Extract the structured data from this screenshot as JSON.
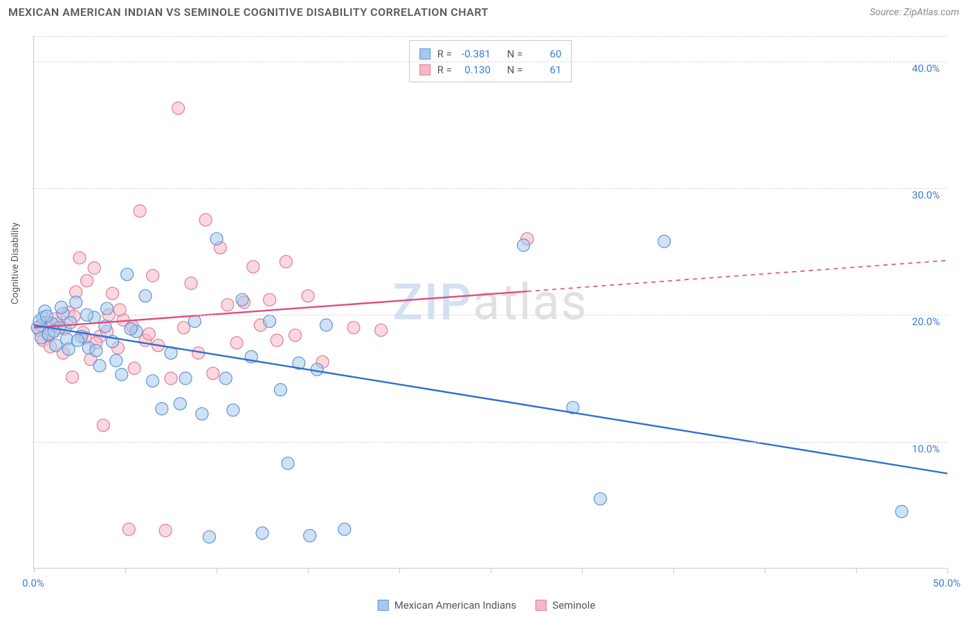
{
  "title": "MEXICAN AMERICAN INDIAN VS SEMINOLE COGNITIVE DISABILITY CORRELATION CHART",
  "source": "Source: ZipAtlas.com",
  "y_axis_label": "Cognitive Disability",
  "watermark_a": "ZIP",
  "watermark_b": "atlas",
  "chart": {
    "type": "scatter",
    "xlim": [
      0,
      50
    ],
    "ylim": [
      0,
      42
    ],
    "x_ticks": [
      0,
      5,
      10,
      15,
      20,
      25,
      30,
      35,
      40,
      45,
      50
    ],
    "x_tick_labels": {
      "0": "0.0%",
      "50": "50.0%"
    },
    "y_ticks": [
      10,
      20,
      30,
      40
    ],
    "y_tick_labels": {
      "10": "10.0%",
      "20": "20.0%",
      "30": "30.0%",
      "40": "40.0%"
    },
    "background_color": "#ffffff",
    "grid_color": "#d8d8d8",
    "axis_color": "#cccccc",
    "tick_label_color": "#3b7dd8",
    "point_radius": 9,
    "point_stroke_width": 1.2,
    "trend_line_width": 2.4
  },
  "series": {
    "blue": {
      "label": "Mexican American Indians",
      "fill": "#a8c8ec",
      "stroke": "#5a95d6",
      "fill_opacity": 0.55,
      "R_label": "R =",
      "R": "-0.381",
      "N_label": "N =",
      "N": "60",
      "trend": {
        "x1": 0,
        "y1": 19.2,
        "x2": 50,
        "y2": 7.5,
        "solid_until_x": 50,
        "color": "#2e6fd0"
      },
      "points": [
        [
          0.2,
          19.0
        ],
        [
          0.4,
          18.2
        ],
        [
          0.5,
          19.8
        ],
        [
          0.6,
          20.3
        ],
        [
          0.8,
          18.5
        ],
        [
          1.0,
          19.3
        ],
        [
          1.2,
          17.6
        ],
        [
          1.4,
          19.0
        ],
        [
          1.6,
          20.1
        ],
        [
          1.8,
          18.1
        ],
        [
          2.0,
          19.4
        ],
        [
          2.3,
          21.0
        ],
        [
          2.6,
          18.3
        ],
        [
          3.0,
          17.4
        ],
        [
          3.3,
          19.8
        ],
        [
          3.6,
          16.0
        ],
        [
          4.0,
          20.5
        ],
        [
          4.3,
          17.9
        ],
        [
          4.8,
          15.3
        ],
        [
          5.1,
          23.2
        ],
        [
          5.6,
          18.7
        ],
        [
          6.1,
          21.5
        ],
        [
          6.5,
          14.8
        ],
        [
          7.0,
          12.6
        ],
        [
          7.5,
          17.0
        ],
        [
          8.0,
          13.0
        ],
        [
          8.3,
          15.0
        ],
        [
          8.8,
          19.5
        ],
        [
          9.2,
          12.2
        ],
        [
          9.6,
          2.5
        ],
        [
          10.0,
          26.0
        ],
        [
          10.5,
          15.0
        ],
        [
          10.9,
          12.5
        ],
        [
          11.4,
          21.2
        ],
        [
          11.9,
          16.7
        ],
        [
          12.5,
          2.8
        ],
        [
          12.9,
          19.5
        ],
        [
          13.5,
          14.1
        ],
        [
          13.9,
          8.3
        ],
        [
          14.5,
          16.2
        ],
        [
          15.1,
          2.6
        ],
        [
          15.5,
          15.7
        ],
        [
          16.0,
          19.2
        ],
        [
          17.0,
          3.1
        ],
        [
          26.8,
          25.5
        ],
        [
          29.5,
          12.7
        ],
        [
          31.0,
          5.5
        ],
        [
          34.5,
          25.8
        ],
        [
          47.5,
          4.5
        ],
        [
          0.3,
          19.5
        ],
        [
          0.7,
          19.9
        ],
        [
          1.1,
          18.7
        ],
        [
          1.5,
          20.6
        ],
        [
          1.9,
          17.3
        ],
        [
          2.4,
          18.0
        ],
        [
          2.9,
          20.0
        ],
        [
          3.4,
          17.2
        ],
        [
          3.9,
          19.1
        ],
        [
          4.5,
          16.4
        ],
        [
          5.3,
          18.9
        ]
      ]
    },
    "pink": {
      "label": "Seminole",
      "fill": "#f5b8c4",
      "stroke": "#e37a94",
      "fill_opacity": 0.55,
      "R_label": "R =",
      "R": "0.130",
      "N_label": "N =",
      "N": "61",
      "trend": {
        "x1": 0,
        "y1": 19.0,
        "x2": 50,
        "y2": 24.3,
        "solid_until_x": 27,
        "color": "#e34b7a"
      },
      "points": [
        [
          0.3,
          18.8
        ],
        [
          0.5,
          18.0
        ],
        [
          0.7,
          19.5
        ],
        [
          0.9,
          17.5
        ],
        [
          1.1,
          18.8
        ],
        [
          1.3,
          19.3
        ],
        [
          1.6,
          17.0
        ],
        [
          1.9,
          20.2
        ],
        [
          2.1,
          15.1
        ],
        [
          2.3,
          21.8
        ],
        [
          2.5,
          24.5
        ],
        [
          2.7,
          18.6
        ],
        [
          2.9,
          22.7
        ],
        [
          3.1,
          16.5
        ],
        [
          3.3,
          23.7
        ],
        [
          3.6,
          18.3
        ],
        [
          3.8,
          11.3
        ],
        [
          4.1,
          20.0
        ],
        [
          4.3,
          21.7
        ],
        [
          4.6,
          17.4
        ],
        [
          4.9,
          19.6
        ],
        [
          5.2,
          3.1
        ],
        [
          5.5,
          15.8
        ],
        [
          5.8,
          28.2
        ],
        [
          6.1,
          18.0
        ],
        [
          6.5,
          23.1
        ],
        [
          6.8,
          17.6
        ],
        [
          7.2,
          3.0
        ],
        [
          7.5,
          15.0
        ],
        [
          7.9,
          36.3
        ],
        [
          8.2,
          19.0
        ],
        [
          8.6,
          22.5
        ],
        [
          9.0,
          17.0
        ],
        [
          9.4,
          27.5
        ],
        [
          9.8,
          15.4
        ],
        [
          10.2,
          25.3
        ],
        [
          10.6,
          20.8
        ],
        [
          11.1,
          17.8
        ],
        [
          11.5,
          21.0
        ],
        [
          12.0,
          23.8
        ],
        [
          12.4,
          19.2
        ],
        [
          12.9,
          21.2
        ],
        [
          13.3,
          18.0
        ],
        [
          13.8,
          24.2
        ],
        [
          14.3,
          18.4
        ],
        [
          15.0,
          21.5
        ],
        [
          15.8,
          16.3
        ],
        [
          17.5,
          19.0
        ],
        [
          19.0,
          18.8
        ],
        [
          27.0,
          26.0
        ],
        [
          0.4,
          19.2
        ],
        [
          0.8,
          18.4
        ],
        [
          1.2,
          19.7
        ],
        [
          1.7,
          18.9
        ],
        [
          2.2,
          19.9
        ],
        [
          2.8,
          18.2
        ],
        [
          3.4,
          17.8
        ],
        [
          4.0,
          18.7
        ],
        [
          4.7,
          20.4
        ],
        [
          5.4,
          19.1
        ],
        [
          6.3,
          18.5
        ]
      ]
    }
  },
  "legend": {
    "blue_label": "Mexican American Indians",
    "pink_label": "Seminole"
  }
}
